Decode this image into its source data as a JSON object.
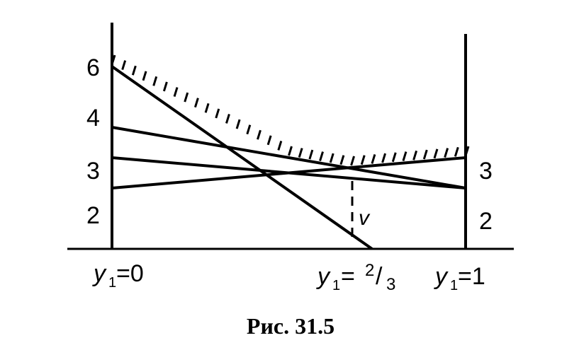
{
  "figure": {
    "caption": "Рис. 31.5",
    "left_axis_ticks": [
      "6",
      "4",
      "3",
      "2"
    ],
    "right_axis_ticks": [
      "3",
      "2"
    ],
    "x_labels": {
      "left": {
        "var": "y",
        "sub": "1",
        "rest": "=0"
      },
      "mid": {
        "var": "y",
        "sub": "1",
        "eq": "=",
        "num": "2",
        "slash": "/",
        "den": "3"
      },
      "right": {
        "var": "y",
        "sub": "1",
        "rest": "=1"
      }
    },
    "value_label": "v"
  },
  "lines": [
    {
      "name": "line-6-to-0",
      "y0": 6,
      "y1": 0
    },
    {
      "name": "line-4-to-2",
      "y0": 4,
      "y1": 2
    },
    {
      "name": "line-3-to-2",
      "y0": 3,
      "y1": 2
    },
    {
      "name": "line-2-to-3",
      "y0": 2,
      "y1": 3
    }
  ],
  "style": {
    "ink": "#000000",
    "background": "#ffffff"
  }
}
